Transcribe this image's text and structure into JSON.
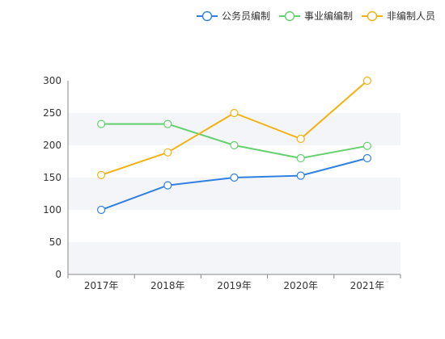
{
  "chart_data": {
    "type": "line",
    "categories": [
      "2017年",
      "2018年",
      "2019年",
      "2020年",
      "2021年"
    ],
    "series": [
      {
        "name": "公务员编制",
        "color": "#2f80e1",
        "values": [
          100,
          138,
          150,
          153,
          180
        ]
      },
      {
        "name": "事业编编制",
        "color": "#63d16d",
        "values": [
          233,
          233,
          200,
          180,
          199
        ]
      },
      {
        "name": "非编制人员",
        "color": "#f2b20f",
        "values": [
          154,
          189,
          250,
          210,
          300
        ]
      }
    ],
    "ylim": [
      0,
      300
    ],
    "yticks": [
      0,
      50,
      100,
      150,
      200,
      250,
      300
    ],
    "grid": "alternating horizontal bands",
    "legend_position": "top-right",
    "band_color": "#f3f5f9",
    "axis_color": "#888888"
  }
}
